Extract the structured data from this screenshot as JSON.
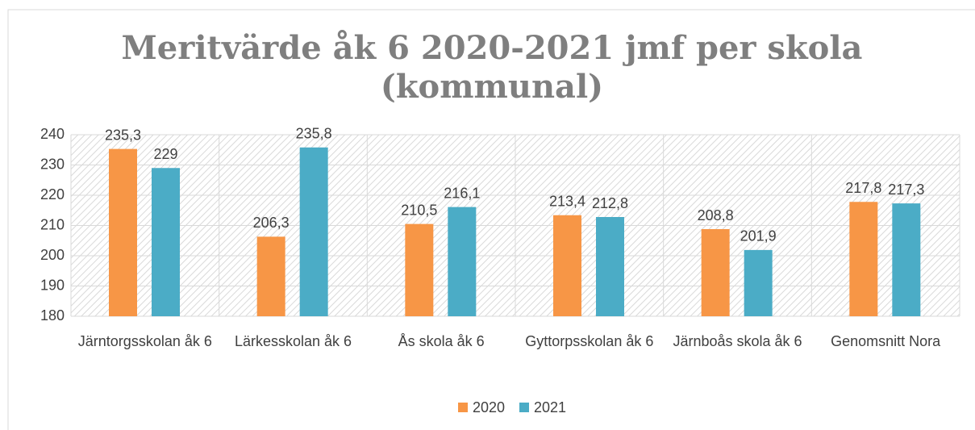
{
  "chart_data": {
    "type": "bar",
    "title": "Meritvärde åk 6 2020-2021 jmf per skola (kommunal)",
    "categories": [
      "Järntorgsskolan åk 6",
      "Lärkesskolan åk 6",
      "Ås skola åk 6",
      "Gyttorpsskolan åk 6",
      "Järnboås skola åk 6",
      "Genomsnitt Nora"
    ],
    "series": [
      {
        "name": "2020",
        "color": "#f79646",
        "values": [
          235.3,
          206.3,
          210.5,
          213.4,
          208.8,
          217.8
        ],
        "value_labels": [
          "235,3",
          "206,3",
          "210,5",
          "213,4",
          "208,8",
          "217,8"
        ]
      },
      {
        "name": "2021",
        "color": "#4bacc6",
        "values": [
          229,
          235.8,
          216.1,
          212.8,
          201.9,
          217.3
        ],
        "value_labels": [
          "229",
          "235,8",
          "216,1",
          "212,8",
          "201,9",
          "217,3"
        ]
      }
    ],
    "ylim": [
      180,
      240
    ],
    "yticks": [
      180,
      190,
      200,
      210,
      220,
      230,
      240
    ],
    "grid": true,
    "legend": "bottom"
  }
}
